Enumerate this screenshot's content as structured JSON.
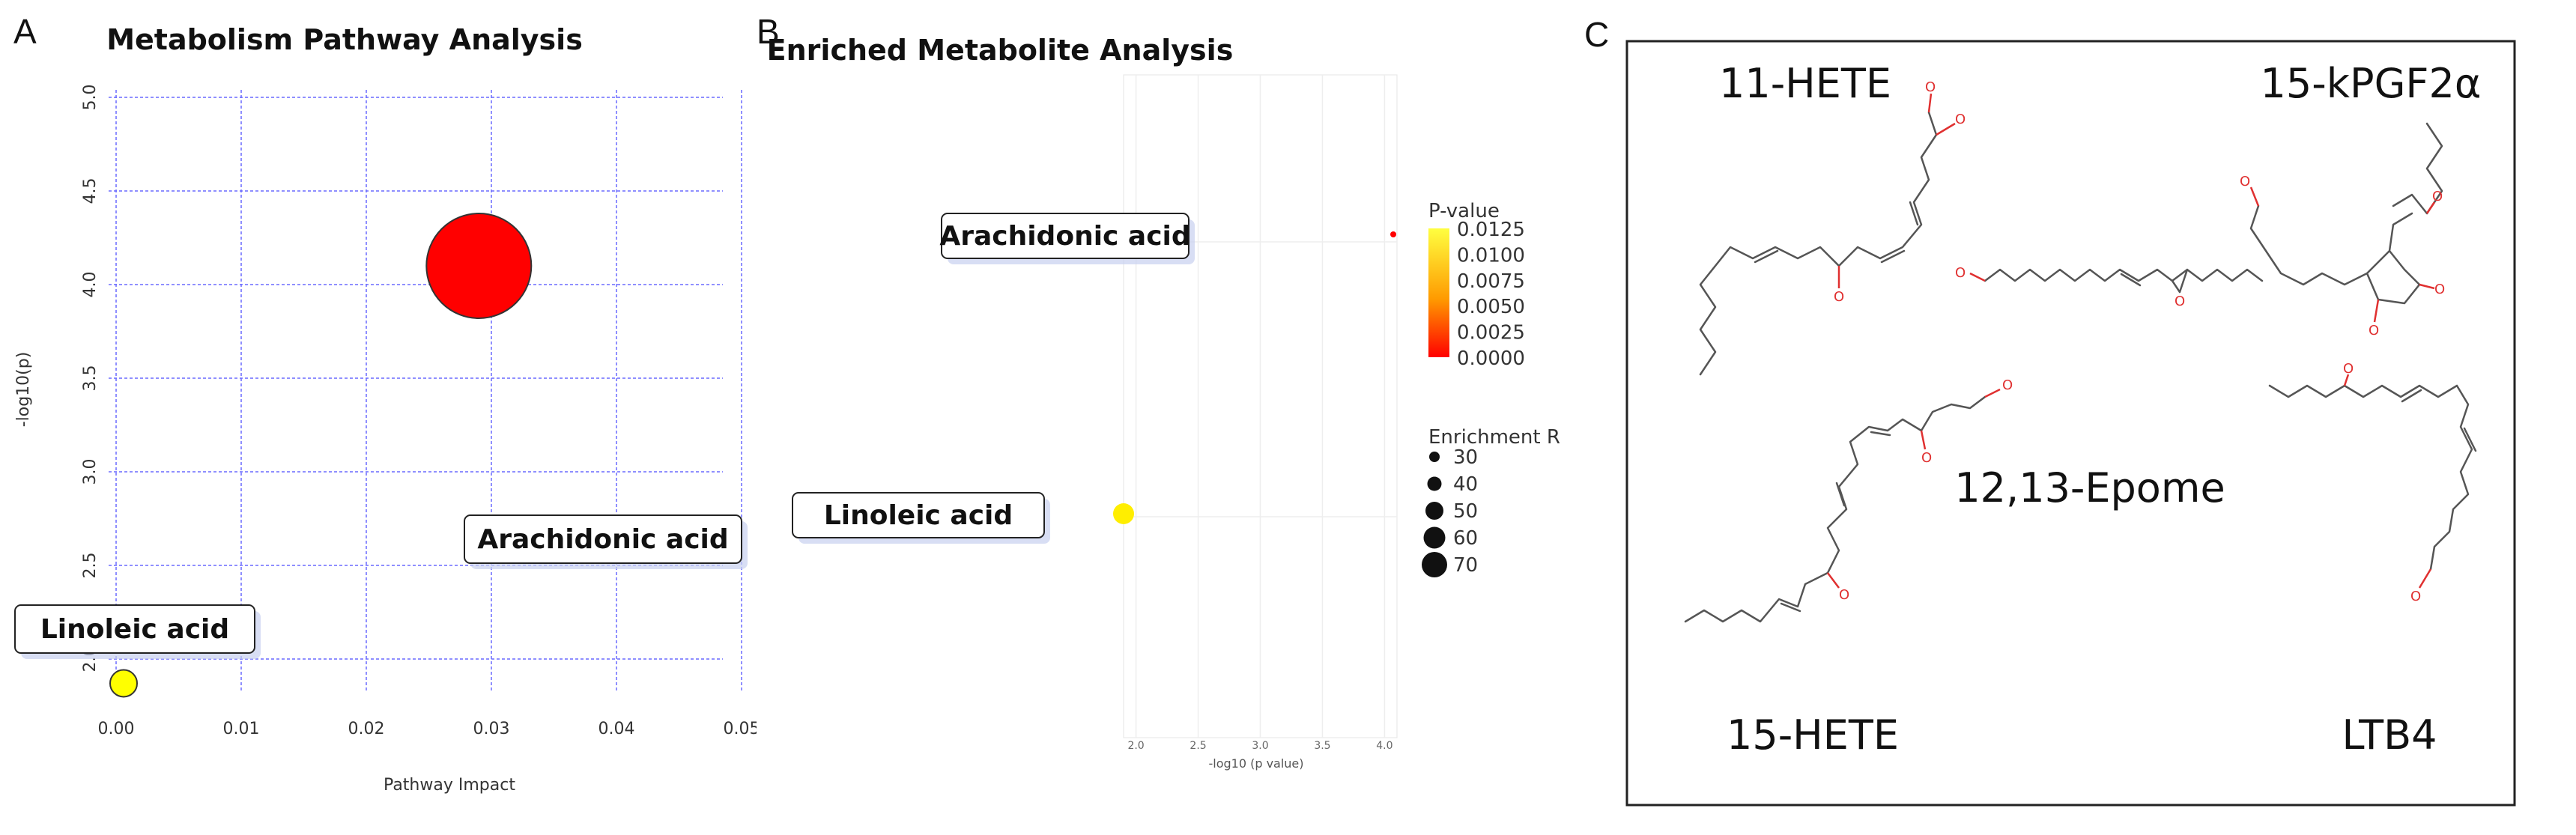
{
  "panels": {
    "a": {
      "letter": "A"
    },
    "b": {
      "letter": "B"
    },
    "c": {
      "letter": "C"
    }
  },
  "chart_data": [
    {
      "type": "scatter",
      "title": "Metabolism Pathway Analysis",
      "xlabel": "Pathway Impact",
      "ylabel": "-log10(p)",
      "xlim": [
        0,
        0.05
      ],
      "ylim": [
        1.9,
        5.0
      ],
      "xticks": [
        "0.00",
        "0.01",
        "0.02",
        "0.03",
        "0.04",
        "0.05"
      ],
      "yticks": [
        "2.0",
        "2.5",
        "3.0",
        "3.5",
        "4.0",
        "4.5",
        "5.0"
      ],
      "grid": true,
      "points": [
        {
          "label": "Arachidonic acid",
          "x": 0.029,
          "y": 4.1,
          "color": "#ff0000",
          "size": "large"
        },
        {
          "label": "Linoleic acid",
          "x": 0.0,
          "y": 1.87,
          "color": "#ffff00",
          "size": "small"
        }
      ]
    },
    {
      "type": "scatter",
      "title": "Enriched Metabolite Analysis",
      "xlabel": "-log10 (p value)",
      "xlim": [
        1.9,
        4.1
      ],
      "xticks": [
        "2.0",
        "2.5",
        "3.0",
        "3.5",
        "4.0"
      ],
      "grid": true,
      "points": [
        {
          "label": "Arachidonic acid",
          "x": 4.07,
          "p": 0.0001,
          "color": "#ff0000"
        },
        {
          "label": "Linoleic acid",
          "x": 1.9,
          "p": 0.0125,
          "color": "#ffee00"
        }
      ],
      "legend_color": {
        "title": "P-value",
        "ticks": [
          "0.0125",
          "0.0100",
          "0.0075",
          "0.0050",
          "0.0025",
          "0.0000"
        ],
        "colors": [
          "#ffff40",
          "#ff0000"
        ]
      },
      "legend_size": {
        "title": "Enrichment R",
        "ticks": [
          "30",
          "40",
          "50",
          "60",
          "70"
        ]
      }
    }
  ],
  "structures": [
    {
      "name": "11-HETE"
    },
    {
      "name": "15-kPGF2α"
    },
    {
      "name": "12,13-Epome"
    },
    {
      "name": "15-HETE"
    },
    {
      "name": "LTB4"
    }
  ]
}
